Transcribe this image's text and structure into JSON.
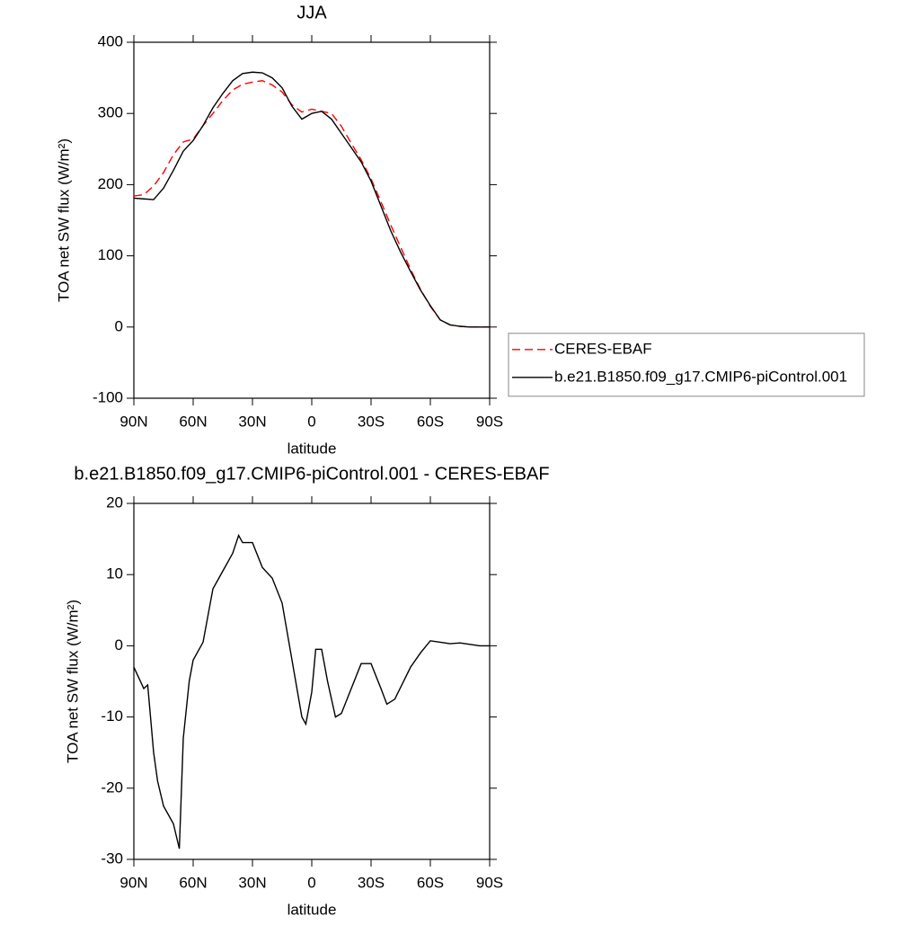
{
  "chart_data": [
    {
      "type": "line",
      "title": "JJA",
      "xlabel": "latitude",
      "ylabel": "TOA net SW flux (W/m²)",
      "x": [
        90,
        85,
        80,
        75,
        70,
        65,
        60,
        55,
        50,
        45,
        40,
        35,
        30,
        25,
        20,
        15,
        10,
        5,
        0,
        -5,
        -10,
        -15,
        -20,
        -25,
        -30,
        -35,
        -40,
        -45,
        -50,
        -55,
        -60,
        -65,
        -70,
        -75,
        -80,
        -85,
        -90
      ],
      "series": [
        {
          "name": "CERES-EBAF",
          "color": "#ff0000",
          "linestyle": "dashed",
          "values": [
            184,
            186,
            198,
            217,
            242,
            260,
            264,
            283,
            300,
            318,
            333,
            341,
            344,
            346,
            340,
            330,
            312,
            302,
            306,
            303,
            300,
            282,
            258,
            235,
            208,
            176,
            143,
            112,
            81,
            53,
            29,
            10,
            3,
            1,
            0,
            0,
            0
          ]
        },
        {
          "name": "b.e21.B1850.f09_g17.CMIP6-piControl.001",
          "color": "#000000",
          "linestyle": "solid",
          "values": [
            181,
            180,
            179,
            195,
            220,
            247,
            262,
            283,
            308,
            328,
            346,
            356,
            358,
            357,
            350,
            336,
            310,
            292,
            300,
            303,
            292,
            272,
            252,
            232,
            205,
            170,
            135,
            105,
            78,
            52,
            30,
            10,
            3,
            1,
            0,
            0,
            0
          ]
        }
      ],
      "xlim": [
        90,
        -90
      ],
      "xticks": [
        {
          "value": 90,
          "label": "90N"
        },
        {
          "value": 60,
          "label": "60N"
        },
        {
          "value": 30,
          "label": "30N"
        },
        0,
        {
          "value": -30,
          "label": "30S"
        },
        {
          "value": -60,
          "label": "60S"
        },
        {
          "value": -90,
          "label": "90S"
        }
      ],
      "ylim": [
        -100,
        400
      ],
      "yticks": [
        -100,
        0,
        100,
        200,
        300,
        400
      ],
      "legend": "right"
    },
    {
      "type": "line",
      "title": "b.e21.B1850.f09_g17.CMIP6-piControl.001 - CERES-EBAF",
      "xlabel": "latitude",
      "ylabel": "TOA net SW flux (W/m²)",
      "x": [
        90,
        85,
        83,
        80,
        78,
        75,
        70,
        67,
        65,
        62,
        60,
        55,
        50,
        45,
        40,
        37,
        35,
        30,
        25,
        20,
        15,
        10,
        5,
        3,
        0,
        -2,
        -5,
        -8,
        -12,
        -15,
        -20,
        -25,
        -30,
        -35,
        -38,
        -42,
        -50,
        -55,
        -60,
        -65,
        -70,
        -75,
        -80,
        -85,
        -90
      ],
      "series": [
        {
          "color": "#000000",
          "linestyle": "solid",
          "values": [
            -3,
            -6,
            -5.5,
            -15,
            -19,
            -22.5,
            -25,
            -28.5,
            -13,
            -5,
            -2,
            0.5,
            8,
            10.5,
            13,
            15.5,
            14.5,
            14.5,
            11,
            9.5,
            6,
            -2,
            -10,
            -11,
            -6.5,
            -0.5,
            -0.5,
            -5,
            -10,
            -9.5,
            -6,
            -2.5,
            -2.5,
            -6,
            -8.2,
            -7.5,
            -3,
            -1,
            0.7,
            0.5,
            0.3,
            0.4,
            0.2,
            0,
            0
          ]
        }
      ],
      "xlim": [
        90,
        -90
      ],
      "xticks": [
        {
          "value": 90,
          "label": "90N"
        },
        {
          "value": 60,
          "label": "60N"
        },
        {
          "value": 30,
          "label": "30N"
        },
        0,
        {
          "value": -30,
          "label": "30S"
        },
        {
          "value": -60,
          "label": "60S"
        },
        {
          "value": -90,
          "label": "90S"
        }
      ],
      "ylim": [
        -30,
        20
      ],
      "yticks": [
        -30,
        -20,
        -10,
        0,
        10,
        20
      ]
    }
  ]
}
